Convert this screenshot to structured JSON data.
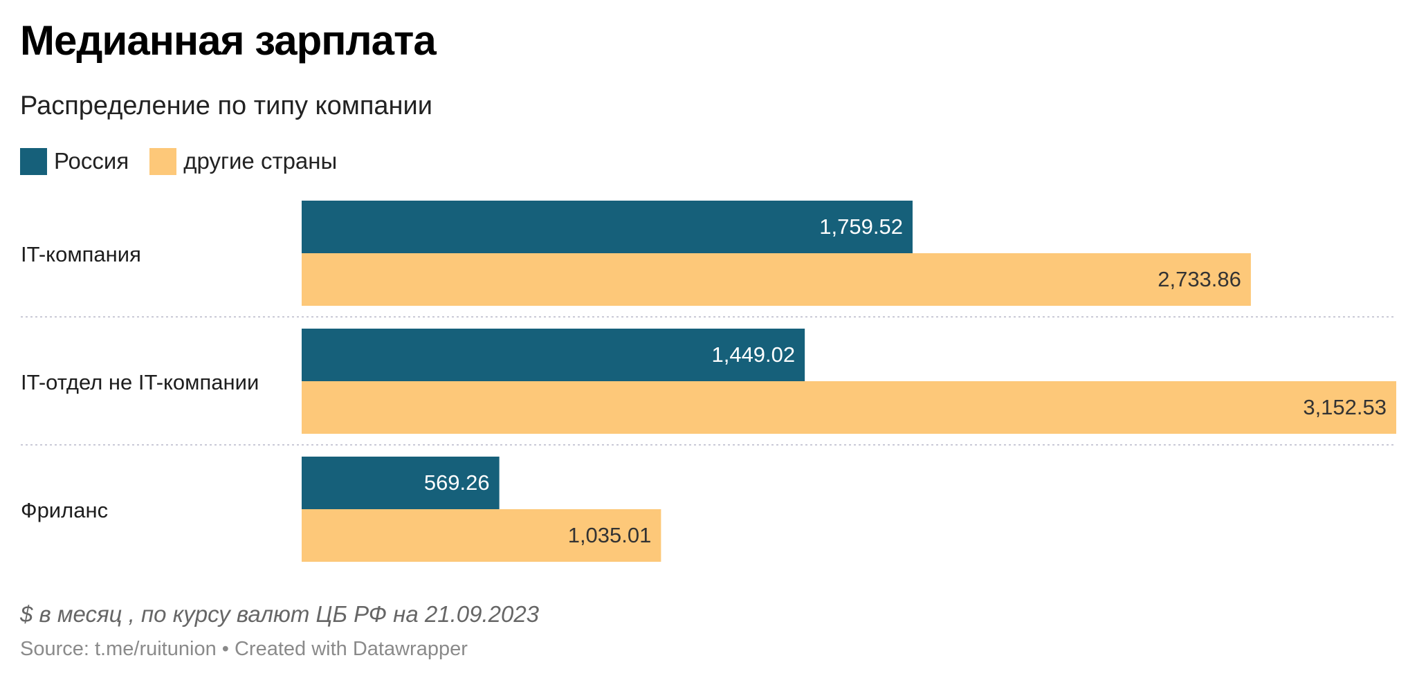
{
  "title": "Медианная зарплата",
  "subtitle": "Распределение по типу компании",
  "legend": {
    "items": [
      {
        "label": "Россия",
        "color": "#16607a"
      },
      {
        "label": "другие страны",
        "color": "#fdc879"
      }
    ]
  },
  "notes": "$ в месяц , по курсу валют ЦБ РФ на 21.09.2023",
  "footer": {
    "source": "Source: t.me/ruitunion",
    "separator": " • ",
    "credit": "Created with Datawrapper"
  },
  "chart_data": {
    "type": "bar",
    "orientation": "horizontal",
    "grouped": true,
    "title": "Медианная зарплата",
    "subtitle": "Распределение по типу компании",
    "categories": [
      "IT-компания",
      "IT-отдел не IT-компании",
      "Фриланс"
    ],
    "series": [
      {
        "name": "Россия",
        "color": "#16607a",
        "label_color": "#ffffff",
        "values": [
          1759.52,
          1449.02,
          569.26
        ],
        "labels": [
          "1,759.52",
          "1,449.02",
          "569.26"
        ]
      },
      {
        "name": "другие страны",
        "color": "#fdc879",
        "label_color": "#333333",
        "values": [
          2733.86,
          3152.53,
          1035.01
        ],
        "labels": [
          "2,733.86",
          "3,152.53",
          "1,035.01"
        ]
      }
    ],
    "xlim": [
      0,
      3152.53
    ],
    "value_axis_shown": false,
    "grid": false,
    "legend_position": "top-left",
    "value_labels": "inside-end",
    "group_separators": "dotted"
  }
}
